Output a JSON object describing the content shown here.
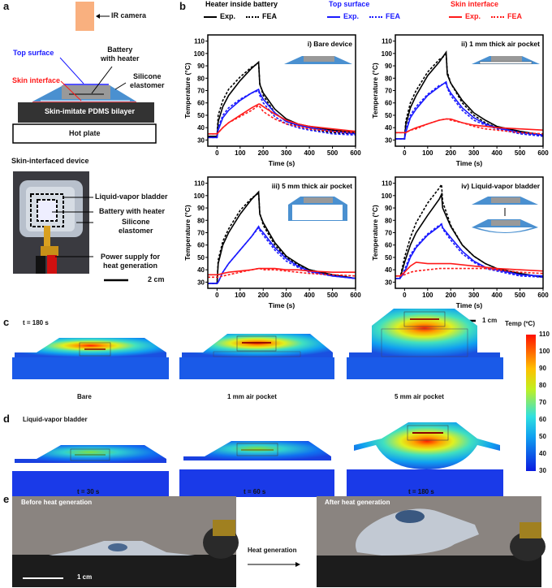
{
  "panels": {
    "a": "a",
    "b": "b",
    "c": "c",
    "d": "d",
    "e": "e"
  },
  "panel_a": {
    "ir_camera": "IR camera",
    "top_surface": "Top surface",
    "battery_with_heater": [
      "Battery",
      "with heater"
    ],
    "skin_interface": "Skin interface",
    "silicone_elastomer": [
      "Silicone",
      "elastomer"
    ],
    "pdms": "Skin-imitate PDMS bilayer",
    "hot_plate": "Hot plate",
    "photo_title": "Skin-interfaced device",
    "photo_labels": {
      "bladder": "Liquid-vapor bladder",
      "battery": "Battery with heater",
      "silicone": [
        "Silicone",
        "elastomer"
      ],
      "power": [
        "Power supply for",
        "heat generation"
      ]
    },
    "scale": "2 cm",
    "colors": {
      "top": "#1a1aff",
      "skin": "#ff1a1a",
      "elastomer": "#4a90d0"
    }
  },
  "legend": {
    "groups": [
      {
        "title": "Heater inside battery",
        "color": "#000000",
        "exp": "Exp.",
        "fea": "FEA"
      },
      {
        "title": "Top surface",
        "color": "#1a1aff",
        "exp": "Exp.",
        "fea": "FEA"
      },
      {
        "title": "Skin interface",
        "color": "#ff1a1a",
        "exp": "Exp.",
        "fea": "FEA"
      }
    ]
  },
  "chart_data": [
    {
      "type": "line",
      "title": "i) Bare device",
      "xlabel": "Time (s)",
      "ylabel": "Temperature (°C)",
      "xlim": [
        -40,
        600
      ],
      "ylim": [
        25,
        115
      ],
      "xticks": [
        0,
        100,
        200,
        300,
        400,
        500,
        600
      ],
      "yticks": [
        30,
        40,
        50,
        60,
        70,
        80,
        90,
        100,
        110
      ],
      "x": [
        -40,
        0,
        5,
        25,
        50,
        100,
        150,
        180,
        185,
        200,
        250,
        300,
        350,
        400,
        500,
        600
      ],
      "series": [
        {
          "name": "Heater Exp.",
          "values": [
            33,
            33,
            45,
            57,
            66,
            78,
            88,
            93,
            75,
            68,
            55,
            47,
            43,
            41,
            38,
            36
          ]
        },
        {
          "name": "Heater FEA",
          "values": [
            33,
            33,
            50,
            62,
            71,
            81,
            89,
            92,
            76,
            66,
            52,
            45,
            41,
            39,
            36,
            35
          ]
        },
        {
          "name": "Top Exp.",
          "values": [
            32,
            32,
            38,
            48,
            54,
            62,
            68,
            71,
            68,
            63,
            52,
            45,
            42,
            40,
            37,
            35
          ]
        },
        {
          "name": "Top FEA",
          "values": [
            32,
            32,
            40,
            50,
            56,
            63,
            68,
            70,
            66,
            60,
            49,
            43,
            40,
            38,
            35,
            34
          ]
        },
        {
          "name": "Skin Exp.",
          "values": [
            35,
            35,
            36,
            40,
            44,
            50,
            56,
            59,
            59,
            57,
            51,
            46,
            43,
            41,
            39,
            37
          ]
        },
        {
          "name": "Skin FEA",
          "values": [
            35,
            35,
            36,
            40,
            44,
            49,
            54,
            58,
            57,
            53,
            47,
            43,
            41,
            39,
            37,
            36
          ]
        }
      ]
    },
    {
      "type": "line",
      "title": "ii) 1 mm thick air pocket",
      "xlabel": "Time (s)",
      "ylabel": "Temperature (°C)",
      "xlim": [
        -40,
        600
      ],
      "ylim": [
        25,
        115
      ],
      "xticks": [
        0,
        100,
        200,
        300,
        400,
        500,
        600
      ],
      "yticks": [
        30,
        40,
        50,
        60,
        70,
        80,
        90,
        100,
        110
      ],
      "x": [
        -40,
        0,
        5,
        25,
        50,
        100,
        150,
        180,
        185,
        200,
        250,
        300,
        350,
        400,
        500,
        600
      ],
      "series": [
        {
          "name": "Heater Exp.",
          "values": [
            31,
            31,
            42,
            56,
            66,
            82,
            93,
            101,
            83,
            76,
            62,
            52,
            46,
            41,
            37,
            34
          ]
        },
        {
          "name": "Heater FEA",
          "values": [
            31,
            31,
            45,
            60,
            70,
            85,
            95,
            99,
            85,
            76,
            60,
            50,
            44,
            40,
            36,
            34
          ]
        },
        {
          "name": "Top Exp.",
          "values": [
            31,
            31,
            36,
            48,
            55,
            66,
            73,
            77,
            73,
            68,
            56,
            48,
            43,
            40,
            36,
            34
          ]
        },
        {
          "name": "Top FEA",
          "values": [
            31,
            31,
            38,
            50,
            57,
            67,
            74,
            76,
            72,
            66,
            54,
            46,
            42,
            39,
            35,
            33
          ]
        },
        {
          "name": "Skin Exp.",
          "values": [
            36,
            36,
            36,
            38,
            40,
            43,
            46,
            47,
            47,
            47,
            44,
            42,
            41,
            40,
            39,
            38
          ]
        },
        {
          "name": "Skin FEA",
          "values": [
            36,
            36,
            36,
            38,
            39,
            43,
            46,
            47,
            47,
            46,
            44,
            41,
            39,
            38,
            36,
            35
          ]
        }
      ]
    },
    {
      "type": "line",
      "title": "iii) 5 mm thick air pocket",
      "xlabel": "Time (s)",
      "ylabel": "Temperature (°C)",
      "xlim": [
        -40,
        600
      ],
      "ylim": [
        25,
        115
      ],
      "xticks": [
        0,
        100,
        200,
        300,
        400,
        500,
        600
      ],
      "yticks": [
        30,
        40,
        50,
        60,
        70,
        80,
        90,
        100,
        110
      ],
      "x": [
        -40,
        0,
        5,
        25,
        50,
        100,
        150,
        180,
        185,
        200,
        250,
        300,
        350,
        400,
        500,
        600
      ],
      "series": [
        {
          "name": "Heater Exp.",
          "values": [
            29,
            29,
            45,
            60,
            70,
            85,
            97,
            103,
            85,
            78,
            62,
            51,
            45,
            40,
            36,
            33
          ]
        },
        {
          "name": "Heater FEA",
          "values": [
            29,
            29,
            48,
            63,
            73,
            88,
            98,
            102,
            86,
            76,
            60,
            50,
            44,
            40,
            36,
            33
          ]
        },
        {
          "name": "Top Exp.",
          "values": [
            29,
            29,
            30,
            38,
            45,
            56,
            67,
            75,
            73,
            70,
            58,
            49,
            43,
            39,
            35,
            33
          ]
        },
        {
          "name": "Top FEA",
          "values": [
            29,
            29,
            30,
            38,
            45,
            56,
            67,
            74,
            72,
            68,
            56,
            47,
            42,
            38,
            35,
            33
          ]
        },
        {
          "name": "Skin Exp.",
          "values": [
            36,
            36,
            36,
            37,
            38,
            39,
            40,
            41,
            41,
            41,
            41,
            40,
            40,
            39,
            38,
            38
          ]
        },
        {
          "name": "Skin FEA",
          "values": [
            34,
            34,
            34,
            35,
            36,
            38,
            40,
            41,
            41,
            40,
            40,
            39,
            38,
            37,
            36,
            35
          ]
        }
      ]
    },
    {
      "type": "line",
      "title": "iv) Liquid-vapor bladder",
      "xlabel": "Time (s)",
      "ylabel": "Temperature (°C)",
      "xlim": [
        -40,
        600
      ],
      "ylim": [
        25,
        115
      ],
      "xticks": [
        0,
        100,
        200,
        300,
        400,
        500,
        600
      ],
      "yticks": [
        30,
        40,
        50,
        60,
        70,
        80,
        90,
        100,
        110
      ],
      "x": [
        -40,
        -20,
        0,
        25,
        50,
        100,
        150,
        160,
        165,
        200,
        250,
        300,
        350,
        400,
        500,
        600
      ],
      "series": [
        {
          "name": "Heater Exp.",
          "values": [
            33,
            33,
            46,
            60,
            70,
            84,
            97,
            101,
            90,
            75,
            60,
            51,
            45,
            41,
            37,
            34
          ]
        },
        {
          "name": "Heater FEA",
          "values": [
            33,
            33,
            50,
            66,
            78,
            94,
            106,
            109,
            95,
            76,
            60,
            51,
            45,
            41,
            37,
            34
          ]
        },
        {
          "name": "Top Exp.",
          "values": [
            33,
            33,
            38,
            50,
            58,
            68,
            75,
            77,
            74,
            66,
            55,
            47,
            42,
            40,
            36,
            35
          ]
        },
        {
          "name": "Top FEA",
          "values": [
            33,
            33,
            40,
            52,
            59,
            69,
            76,
            77,
            73,
            64,
            53,
            46,
            41,
            39,
            35,
            34
          ]
        },
        {
          "name": "Skin Exp.",
          "values": [
            35,
            35,
            38,
            43,
            46,
            45,
            45,
            45,
            45,
            45,
            44,
            43,
            42,
            41,
            40,
            39
          ]
        },
        {
          "name": "Skin FEA",
          "values": [
            35,
            35,
            36,
            38,
            39,
            40,
            41,
            41,
            41,
            41,
            41,
            41,
            41,
            40,
            38,
            37
          ]
        }
      ]
    }
  ],
  "panel_c": {
    "time": "t = 180 s",
    "scale": "1 cm",
    "labels": [
      "Bare",
      "1 mm air pocket",
      "5 mm air pocket"
    ]
  },
  "panel_d": {
    "title": "Liquid-vapor bladder",
    "labels": [
      "t = 30 s",
      "t = 60 s",
      "t = 180 s"
    ]
  },
  "colorbar": {
    "title": "Temp (ºC)",
    "ticks": [
      "110",
      "100",
      "90",
      "80",
      "70",
      "60",
      "50",
      "40",
      "30"
    ],
    "min": 30,
    "max": 110
  },
  "panel_e": {
    "before": "Before heat generation",
    "after": "After heat generation",
    "arrow": "Heat generation",
    "scale": "1 cm"
  }
}
